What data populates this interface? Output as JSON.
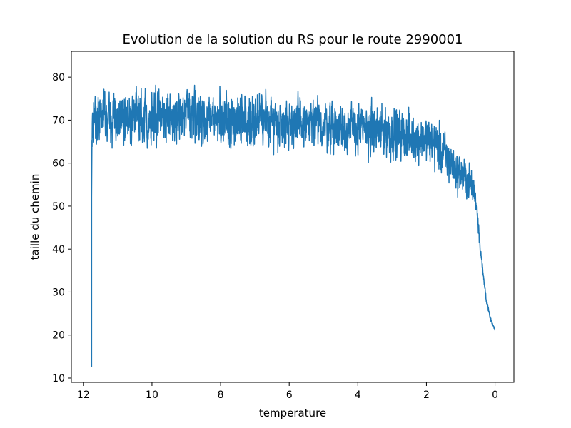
{
  "chart_data": {
    "type": "line",
    "title": "Evolution de la solution du RS pour le route 2990001",
    "xlabel": "temperature",
    "ylabel": "taille du chemin",
    "xlim": [
      12.35,
      -0.55
    ],
    "ylim": [
      9.0,
      86.0
    ],
    "x_axis_inverted": true,
    "grid": false,
    "x_ticks": [
      12,
      10,
      8,
      6,
      4,
      2,
      0
    ],
    "y_ticks": [
      10,
      20,
      30,
      40,
      50,
      60,
      70,
      80
    ],
    "series": [
      {
        "color": "#1f77b4",
        "x": [
          11.76,
          11.76,
          11.75,
          11.74,
          11.7,
          11.65,
          11.6,
          11.5,
          11.3,
          11.0,
          10.5,
          10.0,
          9.5,
          9.0,
          8.5,
          8.0,
          7.5,
          7.0,
          6.5,
          6.0,
          5.5,
          5.0,
          4.5,
          4.0,
          3.5,
          3.0,
          2.5,
          2.0,
          1.7,
          1.5,
          1.3,
          1.1,
          0.9,
          0.8,
          0.7,
          0.6,
          0.55,
          0.5,
          0.45,
          0.4,
          0.35,
          0.3,
          0.25,
          0.2,
          0.15,
          0.1,
          0.05,
          0.0
        ],
        "y": [
          12.5,
          52.0,
          66.0,
          69.0,
          70.5,
          71.0,
          71.0,
          70.8,
          70.5,
          70.5,
          70.5,
          70.8,
          70.5,
          71.0,
          70.5,
          70.0,
          70.5,
          70.0,
          70.0,
          69.5,
          69.0,
          69.0,
          68.5,
          68.0,
          67.5,
          67.0,
          66.0,
          65.5,
          64.0,
          62.0,
          60.0,
          58.0,
          57.0,
          56.0,
          55.0,
          53.0,
          51.0,
          47.0,
          42.0,
          38.0,
          34.0,
          31.0,
          28.0,
          26.0,
          24.0,
          23.0,
          22.0,
          21.0
        ],
        "band": [
          0,
          0,
          5,
          7,
          7.5,
          7.5,
          7.5,
          7.5,
          7.5,
          7.5,
          7.5,
          7.5,
          7.5,
          7.5,
          7.5,
          7.5,
          7.5,
          7.5,
          7.5,
          7.5,
          7.5,
          7.5,
          7.5,
          7.5,
          7.5,
          7.5,
          7.0,
          7.0,
          7.0,
          7.0,
          6.5,
          6.0,
          6.0,
          5.5,
          5.0,
          4.5,
          4.0,
          3.0,
          2.5,
          2.0,
          1.5,
          1.2,
          1.0,
          0.8,
          0.6,
          0.5,
          0.4,
          0.3
        ]
      }
    ]
  }
}
